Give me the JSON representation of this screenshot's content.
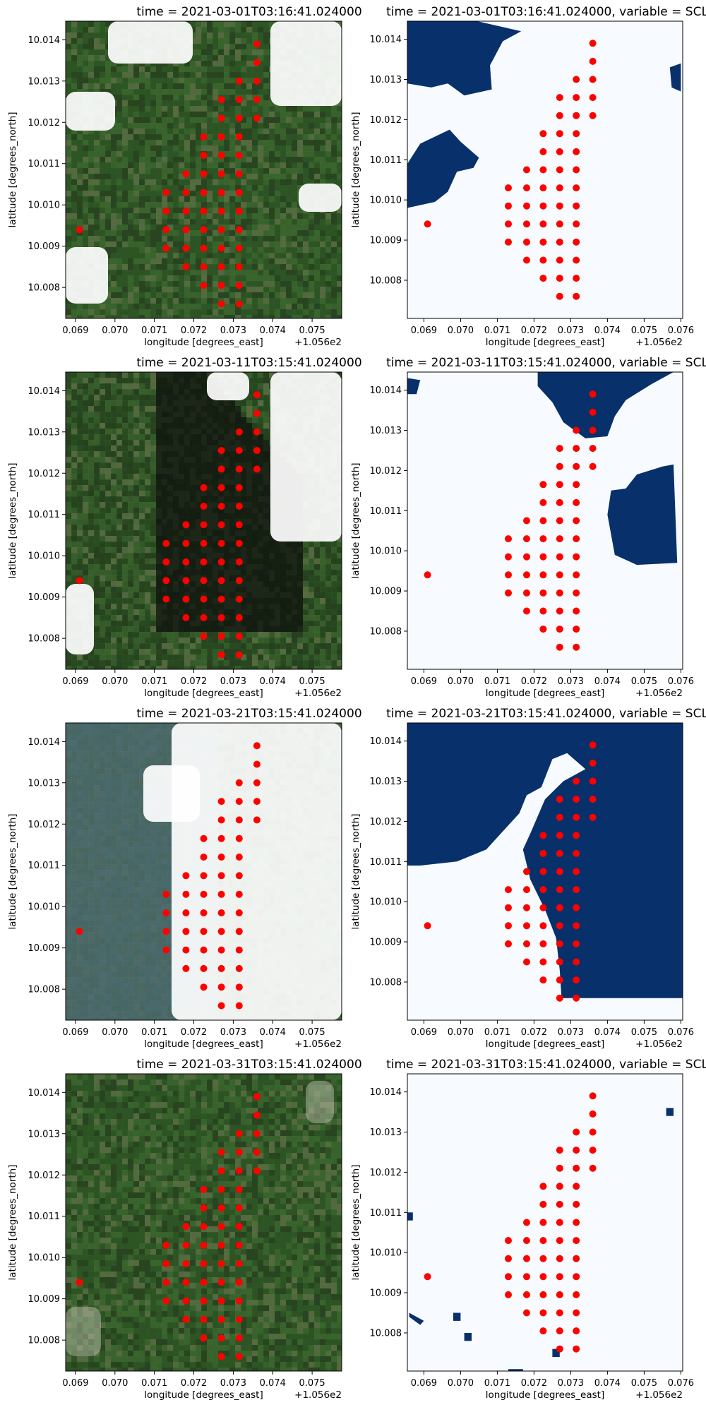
{
  "figure": {
    "panels_per_row": 2,
    "rows": 4
  },
  "colors": {
    "points": "#ff0000",
    "scl_cloud": "#08306b",
    "scl_clear": "#f7fbff"
  },
  "chart_data": [
    {
      "type": "scatter",
      "panel": "rgb",
      "title": "time = 2021-03-01T03:16:41.024000",
      "xlabel": "longitude [degrees_east]",
      "ylabel": "latitude [degrees_north]",
      "x_offset_label": "+1.056e2",
      "xlim": [
        0.06875,
        0.07575
      ],
      "ylim": [
        10.00725,
        10.01445
      ],
      "xticks": [
        "0.069",
        "0.070",
        "0.071",
        "0.072",
        "0.073",
        "0.074",
        "0.075"
      ],
      "yticks": [
        "10.008",
        "10.009",
        "10.010",
        "10.011",
        "10.012",
        "10.013",
        "10.014"
      ],
      "background": "rgb satellite image",
      "cloud_cover": [
        [
          0.0,
          0.6
        ],
        [
          0.17,
          0.25
        ],
        [
          0.35,
          0.1
        ]
      ]
    },
    {
      "type": "heatmap",
      "panel": "scl",
      "title": "time = 2021-03-01T03:16:41.024000, variable = SCL",
      "xlabel": "longitude [degrees_east]",
      "ylabel": "latitude [degrees_north]",
      "x_offset_label": "+1.056e2",
      "xlim": [
        0.06855,
        0.07605
      ],
      "ylim": [
        10.00705,
        10.01445
      ],
      "xticks": [
        "0.069",
        "0.070",
        "0.071",
        "0.072",
        "0.073",
        "0.074",
        "0.075",
        "0.076"
      ],
      "yticks": [
        "10.008",
        "10.009",
        "10.010",
        "10.011",
        "10.012",
        "10.013",
        "10.014"
      ],
      "mask_regions": [
        [
          [
            0.06855,
            10.0136
          ],
          [
            0.06855,
            10.01445
          ],
          [
            0.07045,
            10.01445
          ],
          [
            0.07165,
            10.0142
          ],
          [
            0.07115,
            10.01395
          ],
          [
            0.0708,
            10.01335
          ],
          [
            0.07085,
            10.01275
          ],
          [
            0.0701,
            10.0126
          ],
          [
            0.06965,
            10.0129
          ],
          [
            0.0692,
            10.0128
          ],
          [
            0.06855,
            10.0129
          ]
        ],
        [
          [
            0.0689,
            10.0114
          ],
          [
            0.0697,
            10.01175
          ],
          [
            0.07,
            10.01145
          ],
          [
            0.0705,
            10.01105
          ],
          [
            0.07035,
            10.0108
          ],
          [
            0.0699,
            10.0107
          ],
          [
            0.06965,
            10.0102
          ],
          [
            0.0693,
            10.00995
          ],
          [
            0.06855,
            10.0098
          ],
          [
            0.06855,
            10.0109
          ]
        ],
        [
          [
            0.07575,
            10.0128
          ],
          [
            0.0757,
            10.0133
          ],
          [
            0.076,
            10.0134
          ],
          [
            0.076,
            10.0127
          ]
        ]
      ]
    },
    {
      "type": "scatter",
      "panel": "rgb",
      "title": "time = 2021-03-11T03:15:41.024000",
      "xlabel": "longitude [degrees_east]",
      "ylabel": "latitude [degrees_north]",
      "x_offset_label": "+1.056e2",
      "xlim": [
        0.06875,
        0.07575
      ],
      "ylim": [
        10.00725,
        10.01445
      ],
      "xticks": [
        "0.069",
        "0.070",
        "0.071",
        "0.072",
        "0.073",
        "0.074",
        "0.075"
      ],
      "yticks": [
        "10.008",
        "10.009",
        "10.010",
        "10.011",
        "10.012",
        "10.013",
        "10.014"
      ],
      "background": "rgb satellite image",
      "cloud_cover": [
        [
          0.0,
          0.3
        ],
        [
          0.45,
          0.6
        ],
        [
          0.3,
          0.4
        ]
      ]
    },
    {
      "type": "heatmap",
      "panel": "scl",
      "title": "time = 2021-03-11T03:15:41.024000, variable = SCL",
      "xlabel": "longitude [degrees_east]",
      "ylabel": "latitude [degrees_north]",
      "x_offset_label": "+1.056e2",
      "xlim": [
        0.06855,
        0.07605
      ],
      "ylim": [
        10.00705,
        10.01445
      ],
      "xticks": [
        "0.069",
        "0.070",
        "0.071",
        "0.072",
        "0.073",
        "0.074",
        "0.075",
        "0.076"
      ],
      "yticks": [
        "10.008",
        "10.009",
        "10.010",
        "10.011",
        "10.012",
        "10.013",
        "10.014"
      ],
      "mask_regions": [
        [
          [
            0.0721,
            10.01445
          ],
          [
            0.0758,
            10.01445
          ],
          [
            0.0752,
            10.01415
          ],
          [
            0.0745,
            10.01375
          ],
          [
            0.0742,
            10.01335
          ],
          [
            0.074,
            10.01285
          ],
          [
            0.0734,
            10.0128
          ],
          [
            0.0728,
            10.0132
          ],
          [
            0.0725,
            10.0137
          ],
          [
            0.0721,
            10.0141
          ]
        ],
        [
          [
            0.0741,
            10.0115
          ],
          [
            0.0745,
            10.01155
          ],
          [
            0.0748,
            10.0119
          ],
          [
            0.0755,
            10.0121
          ],
          [
            0.0758,
            10.01215
          ],
          [
            0.0759,
            10.0097
          ],
          [
            0.0748,
            10.00965
          ],
          [
            0.0742,
            10.0099
          ],
          [
            0.0741,
            10.0104
          ],
          [
            0.074,
            10.0109
          ]
        ],
        [
          [
            0.06855,
            10.0139
          ],
          [
            0.06855,
            10.0143
          ],
          [
            0.0689,
            10.01425
          ],
          [
            0.0688,
            10.0139
          ]
        ]
      ]
    },
    {
      "type": "scatter",
      "panel": "rgb",
      "title": "time = 2021-03-21T03:15:41.024000",
      "xlabel": "longitude [degrees_east]",
      "ylabel": "latitude [degrees_north]",
      "x_offset_label": "+1.056e2",
      "xlim": [
        0.06875,
        0.07575
      ],
      "ylim": [
        10.00725,
        10.01445
      ],
      "xticks": [
        "0.069",
        "0.070",
        "0.071",
        "0.072",
        "0.073",
        "0.074",
        "0.075"
      ],
      "yticks": [
        "10.008",
        "10.009",
        "10.010",
        "10.011",
        "10.012",
        "10.013",
        "10.014"
      ],
      "background": "rgb satellite image",
      "cloud_cover": [
        [
          0.4,
          1.0
        ],
        [
          0.0,
          0.7
        ],
        [
          0.2,
          0.9
        ]
      ]
    },
    {
      "type": "heatmap",
      "panel": "scl",
      "title": "time = 2021-03-21T03:15:41.024000, variable = SCL",
      "xlabel": "longitude [degrees_east]",
      "ylabel": "latitude [degrees_north]",
      "x_offset_label": "+1.056e2",
      "xlim": [
        0.06855,
        0.07605
      ],
      "ylim": [
        10.00705,
        10.01445
      ],
      "xticks": [
        "0.069",
        "0.070",
        "0.071",
        "0.072",
        "0.073",
        "0.074",
        "0.075",
        "0.076"
      ],
      "yticks": [
        "10.008",
        "10.009",
        "10.010",
        "10.011",
        "10.012",
        "10.013",
        "10.014"
      ],
      "mask_regions": [
        [
          [
            0.06855,
            10.01445
          ],
          [
            0.0761,
            10.01445
          ],
          [
            0.0761,
            10.0076
          ],
          [
            0.07275,
            10.0076
          ],
          [
            0.0727,
            10.0083
          ],
          [
            0.0726,
            10.0091
          ],
          [
            0.0723,
            10.0098
          ],
          [
            0.0719,
            10.01055
          ],
          [
            0.0717,
            10.0113
          ],
          [
            0.0719,
            10.0117
          ],
          [
            0.0723,
            10.01255
          ],
          [
            0.0728,
            10.013
          ],
          [
            0.0734,
            10.0133
          ],
          [
            0.0729,
            10.0137
          ],
          [
            0.0725,
            10.01355
          ],
          [
            0.0722,
            10.01285
          ],
          [
            0.0718,
            10.01265
          ],
          [
            0.0716,
            10.0122
          ],
          [
            0.0712,
            10.0118
          ],
          [
            0.0707,
            10.0113
          ],
          [
            0.0699,
            10.011
          ],
          [
            0.0689,
            10.0109
          ],
          [
            0.06855,
            10.0109
          ]
        ]
      ]
    },
    {
      "type": "scatter",
      "panel": "rgb",
      "title": "time = 2021-03-31T03:15:41.024000",
      "xlabel": "longitude [degrees_east]",
      "ylabel": "latitude [degrees_north]",
      "x_offset_label": "+1.056e2",
      "xlim": [
        0.06875,
        0.07575
      ],
      "ylim": [
        10.00725,
        10.01445
      ],
      "xticks": [
        "0.069",
        "0.070",
        "0.071",
        "0.072",
        "0.073",
        "0.074",
        "0.075"
      ],
      "yticks": [
        "10.008",
        "10.009",
        "10.010",
        "10.011",
        "10.012",
        "10.013",
        "10.014"
      ],
      "background": "rgb satellite image",
      "cloud_cover": [
        [
          0.0,
          0.0
        ],
        [
          0.0,
          0.0
        ],
        [
          0.0,
          0.0
        ]
      ]
    },
    {
      "type": "heatmap",
      "panel": "scl",
      "title": "time = 2021-03-31T03:15:41.024000, variable = SCL",
      "xlabel": "longitude [degrees_east]",
      "ylabel": "latitude [degrees_north]",
      "x_offset_label": "+1.056e2",
      "xlim": [
        0.06855,
        0.07605
      ],
      "ylim": [
        10.00705,
        10.01445
      ],
      "xticks": [
        "0.069",
        "0.070",
        "0.071",
        "0.072",
        "0.073",
        "0.074",
        "0.075",
        "0.076"
      ],
      "yticks": [
        "10.008",
        "10.009",
        "10.010",
        "10.011",
        "10.012",
        "10.013",
        "10.014"
      ],
      "mask_regions": [
        [
          [
            0.0756,
            10.0136
          ],
          [
            0.0758,
            10.0136
          ],
          [
            0.0758,
            10.0134
          ],
          [
            0.0756,
            10.0134
          ]
        ],
        [
          [
            0.06855,
            10.011
          ],
          [
            0.0687,
            10.011
          ],
          [
            0.0687,
            10.0108
          ],
          [
            0.06855,
            10.0108
          ]
        ],
        [
          [
            0.0686,
            10.0085
          ],
          [
            0.069,
            10.0083
          ],
          [
            0.0689,
            10.0082
          ],
          [
            0.0686,
            10.0084
          ]
        ],
        [
          [
            0.0698,
            10.0085
          ],
          [
            0.07,
            10.0085
          ],
          [
            0.07,
            10.0083
          ],
          [
            0.0698,
            10.0083
          ]
        ],
        [
          [
            0.0701,
            10.008
          ],
          [
            0.0703,
            10.008
          ],
          [
            0.0703,
            10.0078
          ],
          [
            0.0701,
            10.0078
          ]
        ],
        [
          [
            0.0713,
            10.0071
          ],
          [
            0.0717,
            10.0071
          ],
          [
            0.0717,
            10.00705
          ],
          [
            0.0713,
            10.00705
          ]
        ],
        [
          [
            0.0725,
            10.0076
          ],
          [
            0.0727,
            10.0076
          ],
          [
            0.0727,
            10.0074
          ],
          [
            0.0725,
            10.0074
          ]
        ]
      ]
    }
  ],
  "points": [
    {
      "x": 0.0691,
      "y": 10.0094
    },
    {
      "x": 0.0713,
      "y": 10.00895
    },
    {
      "x": 0.0713,
      "y": 10.0094
    },
    {
      "x": 0.0713,
      "y": 10.00985
    },
    {
      "x": 0.0713,
      "y": 10.0103
    },
    {
      "x": 0.0718,
      "y": 10.0085
    },
    {
      "x": 0.0718,
      "y": 10.00895
    },
    {
      "x": 0.0718,
      "y": 10.0094
    },
    {
      "x": 0.0718,
      "y": 10.00985
    },
    {
      "x": 0.0718,
      "y": 10.0103
    },
    {
      "x": 0.0718,
      "y": 10.01075
    },
    {
      "x": 0.07225,
      "y": 10.00805
    },
    {
      "x": 0.07225,
      "y": 10.0085
    },
    {
      "x": 0.07225,
      "y": 10.00895
    },
    {
      "x": 0.07225,
      "y": 10.0094
    },
    {
      "x": 0.07225,
      "y": 10.00985
    },
    {
      "x": 0.07225,
      "y": 10.0103
    },
    {
      "x": 0.07225,
      "y": 10.01075
    },
    {
      "x": 0.07225,
      "y": 10.0112
    },
    {
      "x": 0.07225,
      "y": 10.01165
    },
    {
      "x": 0.0727,
      "y": 10.0076
    },
    {
      "x": 0.0727,
      "y": 10.00805
    },
    {
      "x": 0.0727,
      "y": 10.0085
    },
    {
      "x": 0.0727,
      "y": 10.00895
    },
    {
      "x": 0.0727,
      "y": 10.0094
    },
    {
      "x": 0.0727,
      "y": 10.00985
    },
    {
      "x": 0.0727,
      "y": 10.0103
    },
    {
      "x": 0.0727,
      "y": 10.01075
    },
    {
      "x": 0.0727,
      "y": 10.0112
    },
    {
      "x": 0.0727,
      "y": 10.01165
    },
    {
      "x": 0.0727,
      "y": 10.0121
    },
    {
      "x": 0.0727,
      "y": 10.01255
    },
    {
      "x": 0.07315,
      "y": 10.0076
    },
    {
      "x": 0.07315,
      "y": 10.00805
    },
    {
      "x": 0.07315,
      "y": 10.0085
    },
    {
      "x": 0.07315,
      "y": 10.00895
    },
    {
      "x": 0.07315,
      "y": 10.0094
    },
    {
      "x": 0.07315,
      "y": 10.00985
    },
    {
      "x": 0.07315,
      "y": 10.0103
    },
    {
      "x": 0.07315,
      "y": 10.01075
    },
    {
      "x": 0.07315,
      "y": 10.0112
    },
    {
      "x": 0.07315,
      "y": 10.01165
    },
    {
      "x": 0.07315,
      "y": 10.0121
    },
    {
      "x": 0.07315,
      "y": 10.01255
    },
    {
      "x": 0.07315,
      "y": 10.013
    },
    {
      "x": 0.0736,
      "y": 10.0121
    },
    {
      "x": 0.0736,
      "y": 10.01255
    },
    {
      "x": 0.0736,
      "y": 10.013
    },
    {
      "x": 0.0736,
      "y": 10.01345
    },
    {
      "x": 0.0736,
      "y": 10.0139
    }
  ]
}
